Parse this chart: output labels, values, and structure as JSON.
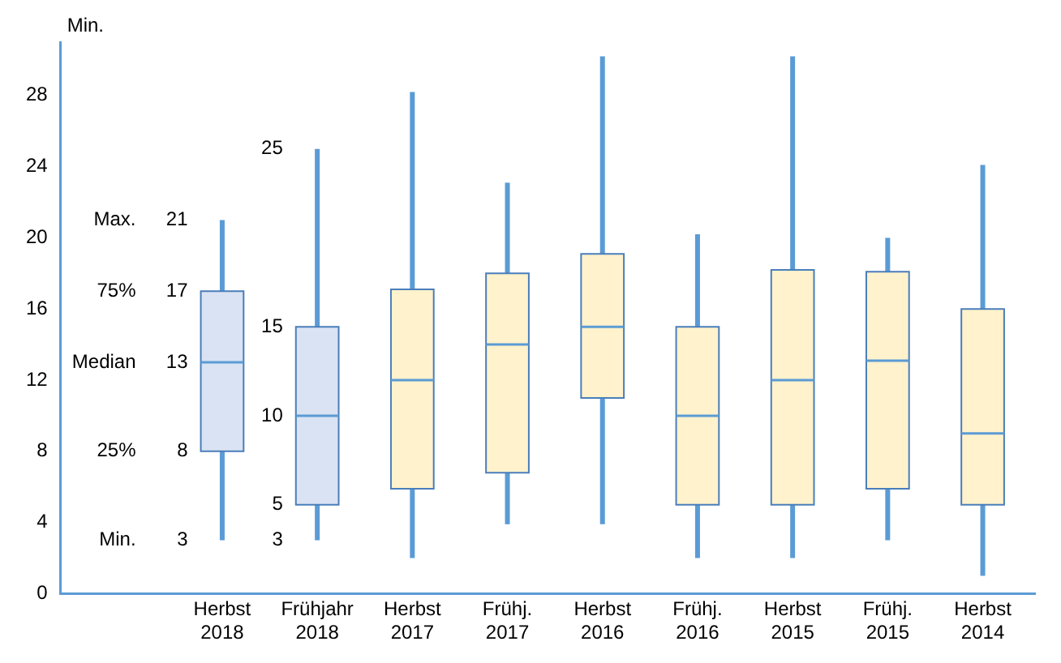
{
  "chart_data": {
    "type": "box",
    "ylabel": "Min.",
    "categories": [
      "Herbst 2018",
      "Frühjahr 2018",
      "Herbst 2017",
      "Frühj. 2017",
      "Herbst 2016",
      "Frühj. 2016",
      "Herbst 2015",
      "Frühj. 2015",
      "Herbst 2014"
    ],
    "boxes": [
      {
        "low": 3,
        "q1": 8,
        "median": 13,
        "q3": 17,
        "high": 21
      },
      {
        "low": 3,
        "q1": 5,
        "median": 10,
        "q3": 15,
        "high": 25
      },
      {
        "low": 2,
        "q1": 5.9,
        "median": 12,
        "q3": 17.1,
        "high": 28.2
      },
      {
        "low": 3.9,
        "q1": 6.8,
        "median": 14,
        "q3": 18,
        "high": 23.1
      },
      {
        "low": 3.9,
        "q1": 11,
        "median": 15,
        "q3": 19.1,
        "high": 30.2
      },
      {
        "low": 2,
        "q1": 5,
        "median": 10,
        "q3": 15,
        "high": 20.2
      },
      {
        "low": 2,
        "q1": 5,
        "median": 12,
        "q3": 18.2,
        "high": 30.2
      },
      {
        "low": 3,
        "q1": 5.9,
        "median": 13.1,
        "q3": 18.1,
        "high": 20
      },
      {
        "low": 1,
        "q1": 5,
        "median": 9,
        "q3": 16,
        "high": 24.1
      }
    ],
    "colors": [
      "#dae3f3",
      "#dae3f3",
      "#fff2cc",
      "#fff2cc",
      "#fff2cc",
      "#fff2cc",
      "#fff2cc",
      "#fff2cc",
      "#fff2cc"
    ],
    "ylim": [
      0,
      31
    ],
    "yticks": [
      0,
      4,
      8,
      12,
      16,
      20,
      24,
      28
    ],
    "grid": false,
    "legend": false,
    "annotations": [
      "Max.",
      "75%",
      "Median",
      "25%",
      "Min.",
      {
        "text": "21",
        "x": "Herbst 2018",
        "y": 21
      },
      {
        "text": "17",
        "x": "Herbst 2018",
        "y": 17
      },
      {
        "text": "13",
        "x": "Herbst 2018",
        "y": 13
      },
      {
        "text": "8",
        "x": "Herbst 2018",
        "y": 8
      },
      {
        "text": "3",
        "x": "Herbst 2018",
        "y": 3
      },
      {
        "text": "25",
        "x": "Frühjahr 2018",
        "y": 25
      },
      {
        "text": "15",
        "x": "Frühjahr 2018",
        "y": 15
      },
      {
        "text": "10",
        "x": "Frühjahr 2018",
        "y": 10
      },
      {
        "text": "5",
        "x": "Frühjahr 2018",
        "y": 5
      },
      {
        "text": "3",
        "x": "Frühjahr 2018",
        "y": 3
      }
    ]
  }
}
